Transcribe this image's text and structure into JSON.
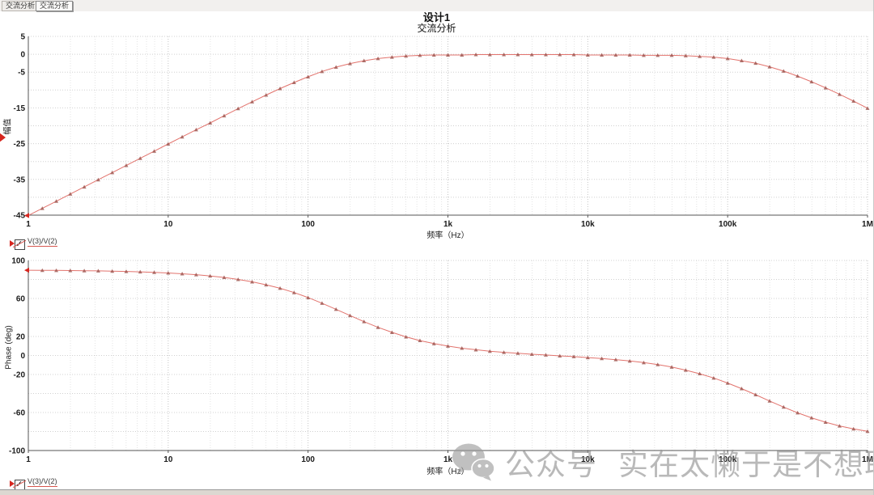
{
  "tabs": [
    {
      "label": "交流分析",
      "selected": false
    },
    {
      "label": "交流分析",
      "selected": true
    }
  ],
  "header": {
    "title": "设计1",
    "subtitle": "交流分析"
  },
  "legends": {
    "trace_label": "V(3)/V(2)",
    "checkbox_checked": true,
    "check_glyph": "✓"
  },
  "watermark": {
    "icon": "wechat-icon",
    "text_left": "公众号",
    "text_right": "实在太懒于是不想取名",
    "color": "#9a9a9a"
  },
  "colors": {
    "trace": "#e2736d",
    "marker": "#a05a55",
    "grid_horizontal": "#d0d0d0",
    "grid_major_vertical": "#c4c4c4",
    "grid_minor_vertical": "#e4e4e4",
    "axis": "#555555",
    "start_arrow": "#d6261f"
  },
  "chart_data": [
    {
      "type": "line",
      "name": "magnitude",
      "title": "交流分析",
      "xlabel": "频率（Hz）",
      "ylabel": "幅值",
      "x_scale": "log10",
      "x_unit": "Hz",
      "y_unit": "dB",
      "xlim_log10": [
        0,
        6
      ],
      "x_ticks": [
        {
          "log10": 0,
          "label": "1"
        },
        {
          "log10": 1,
          "label": "10"
        },
        {
          "log10": 2,
          "label": "100"
        },
        {
          "log10": 3,
          "label": "1k"
        },
        {
          "log10": 4,
          "label": "10k"
        },
        {
          "log10": 5,
          "label": "100k"
        },
        {
          "log10": 6,
          "label": "1M"
        }
      ],
      "ylim": [
        -45,
        5
      ],
      "y_grid_step": 5,
      "y_tick_labels": [
        {
          "value": 5,
          "label": "5"
        },
        {
          "value": 0,
          "label": "0"
        },
        {
          "value": -5,
          "label": "-5"
        },
        {
          "value": -15,
          "label": "-15"
        },
        {
          "value": -25,
          "label": "-25"
        },
        {
          "value": -35,
          "label": "-35"
        },
        {
          "value": -45,
          "label": "-45"
        }
      ],
      "series": [
        {
          "name": "V(3)/V(2)",
          "color": "#e2736d",
          "marker": "triangle",
          "marker_color": "#a05a55",
          "points": [
            [
              0,
              -45.1
            ],
            [
              0.1,
              -43.1
            ],
            [
              0.2,
              -41.1
            ],
            [
              0.3,
              -39.1
            ],
            [
              0.4,
              -37.1
            ],
            [
              0.5,
              -35.1
            ],
            [
              0.6,
              -33.1
            ],
            [
              0.7,
              -31.1
            ],
            [
              0.8,
              -29.1
            ],
            [
              0.9,
              -27.1
            ],
            [
              1,
              -25.1
            ],
            [
              1.1,
              -23.1
            ],
            [
              1.2,
              -21.1
            ],
            [
              1.3,
              -19.2
            ],
            [
              1.4,
              -17.2
            ],
            [
              1.5,
              -15.2
            ],
            [
              1.6,
              -13.3
            ],
            [
              1.7,
              -11.4
            ],
            [
              1.8,
              -9.6
            ],
            [
              1.9,
              -7.9
            ],
            [
              2,
              -6.3
            ],
            [
              2.1,
              -4.8
            ],
            [
              2.2,
              -3.6
            ],
            [
              2.3,
              -2.6
            ],
            [
              2.4,
              -1.8
            ],
            [
              2.5,
              -1.2
            ],
            [
              2.6,
              -0.8
            ],
            [
              2.7,
              -0.5
            ],
            [
              2.8,
              -0.3
            ],
            [
              2.9,
              -0.2
            ],
            [
              3,
              -0.2
            ],
            [
              3.1,
              -0.2
            ],
            [
              3.2,
              -0.1
            ],
            [
              3.3,
              -0.1
            ],
            [
              3.4,
              -0.1
            ],
            [
              3.5,
              -0.1
            ],
            [
              3.6,
              -0.1
            ],
            [
              3.7,
              -0.1
            ],
            [
              3.8,
              -0.1
            ],
            [
              3.9,
              -0.1
            ],
            [
              4,
              -0.2
            ],
            [
              4.1,
              -0.2
            ],
            [
              4.2,
              -0.2
            ],
            [
              4.3,
              -0.2
            ],
            [
              4.4,
              -0.3
            ],
            [
              4.5,
              -0.3
            ],
            [
              4.6,
              -0.3
            ],
            [
              4.7,
              -0.4
            ],
            [
              4.8,
              -0.6
            ],
            [
              4.9,
              -0.8
            ],
            [
              5,
              -1.2
            ],
            [
              5.1,
              -1.8
            ],
            [
              5.2,
              -2.5
            ],
            [
              5.3,
              -3.5
            ],
            [
              5.4,
              -4.7
            ],
            [
              5.5,
              -6.1
            ],
            [
              5.6,
              -7.7
            ],
            [
              5.7,
              -9.4
            ],
            [
              5.8,
              -11.2
            ],
            [
              5.9,
              -13.1
            ],
            [
              6,
              -15.1
            ]
          ]
        }
      ]
    },
    {
      "type": "line",
      "name": "phase",
      "xlabel": "频率（Hz）",
      "ylabel": "Phase (deg)",
      "x_scale": "log10",
      "x_unit": "Hz",
      "y_unit": "deg",
      "xlim_log10": [
        0,
        6
      ],
      "x_ticks": [
        {
          "log10": 0,
          "label": "1"
        },
        {
          "log10": 1,
          "label": "10"
        },
        {
          "log10": 2,
          "label": "100"
        },
        {
          "log10": 3,
          "label": "1k"
        },
        {
          "log10": 4,
          "label": "10k"
        },
        {
          "log10": 5,
          "label": "100k"
        },
        {
          "log10": 6,
          "label": "1M"
        }
      ],
      "ylim": [
        -100,
        100
      ],
      "y_grid_step": 20,
      "y_tick_labels": [
        {
          "value": 100,
          "label": "100"
        },
        {
          "value": 60,
          "label": "60"
        },
        {
          "value": 20,
          "label": "20"
        },
        {
          "value": 0,
          "label": "0"
        },
        {
          "value": -20,
          "label": "-20"
        },
        {
          "value": -60,
          "label": "-60"
        },
        {
          "value": -100,
          "label": "-100"
        }
      ],
      "series": [
        {
          "name": "V(3)/V(2)",
          "color": "#e2736d",
          "marker": "triangle",
          "marker_color": "#a05a55",
          "points": [
            [
              0,
              89.7
            ],
            [
              0.1,
              89.6
            ],
            [
              0.2,
              89.5
            ],
            [
              0.3,
              89.4
            ],
            [
              0.4,
              89.2
            ],
            [
              0.5,
              89
            ],
            [
              0.6,
              88.7
            ],
            [
              0.7,
              88.4
            ],
            [
              0.8,
              88
            ],
            [
              0.9,
              87.5
            ],
            [
              1,
              86.8
            ],
            [
              1.1,
              86
            ],
            [
              1.2,
              85
            ],
            [
              1.3,
              83.7
            ],
            [
              1.4,
              82.1
            ],
            [
              1.5,
              80
            ],
            [
              1.6,
              77.5
            ],
            [
              1.7,
              74.4
            ],
            [
              1.8,
              70.7
            ],
            [
              1.9,
              66.2
            ],
            [
              2,
              60.9
            ],
            [
              2.1,
              55
            ],
            [
              2.2,
              48.6
            ],
            [
              2.3,
              42
            ],
            [
              2.4,
              35.6
            ],
            [
              2.5,
              29.6
            ],
            [
              2.6,
              24.3
            ],
            [
              2.7,
              19.6
            ],
            [
              2.8,
              15.7
            ],
            [
              2.9,
              12.5
            ],
            [
              3,
              9.9
            ],
            [
              3.1,
              7.7
            ],
            [
              3.2,
              6
            ],
            [
              3.3,
              4.5
            ],
            [
              3.4,
              3.3
            ],
            [
              3.5,
              2.3
            ],
            [
              3.6,
              1.3
            ],
            [
              3.7,
              0.5
            ],
            [
              3.8,
              -0.4
            ],
            [
              3.9,
              -1.2
            ],
            [
              4,
              -2.2
            ],
            [
              4.1,
              -3.2
            ],
            [
              4.2,
              -4.4
            ],
            [
              4.3,
              -5.8
            ],
            [
              4.4,
              -7.5
            ],
            [
              4.5,
              -9.6
            ],
            [
              4.6,
              -12.2
            ],
            [
              4.7,
              -15.4
            ],
            [
              4.8,
              -19.2
            ],
            [
              4.9,
              -23.7
            ],
            [
              5,
              -29
            ],
            [
              5.1,
              -34.9
            ],
            [
              5.2,
              -41.3
            ],
            [
              5.3,
              -47.9
            ],
            [
              5.4,
              -54.3
            ],
            [
              5.5,
              -60.3
            ],
            [
              5.6,
              -65.6
            ],
            [
              5.7,
              -70.2
            ],
            [
              5.8,
              -74.1
            ],
            [
              5.9,
              -77.2
            ],
            [
              6,
              -79.8
            ]
          ]
        }
      ]
    }
  ]
}
